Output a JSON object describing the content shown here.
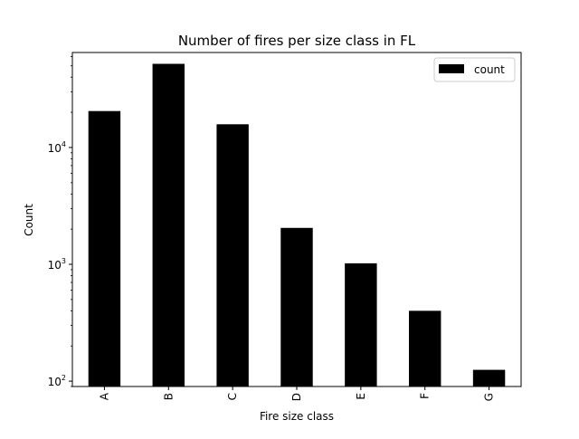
{
  "chart_data": {
    "type": "bar",
    "title": "Number of fires per size class in FL",
    "xlabel": "Fire size class",
    "ylabel": "Count",
    "categories": [
      "A",
      "B",
      "C",
      "D",
      "E",
      "F",
      "G"
    ],
    "series": [
      {
        "name": "count",
        "values": [
          20500,
          52000,
          15800,
          2050,
          1020,
          400,
          125
        ],
        "color": "#000000"
      }
    ],
    "yscale": "log",
    "ylim": [
      90,
      65000
    ],
    "yticks": [
      {
        "value": 100,
        "base": "10",
        "exp": "2"
      },
      {
        "value": 1000,
        "base": "10",
        "exp": "3"
      },
      {
        "value": 10000,
        "base": "10",
        "exp": "4"
      }
    ],
    "legend": {
      "position": "top-right",
      "entries": [
        "count"
      ]
    },
    "grid": false
  }
}
